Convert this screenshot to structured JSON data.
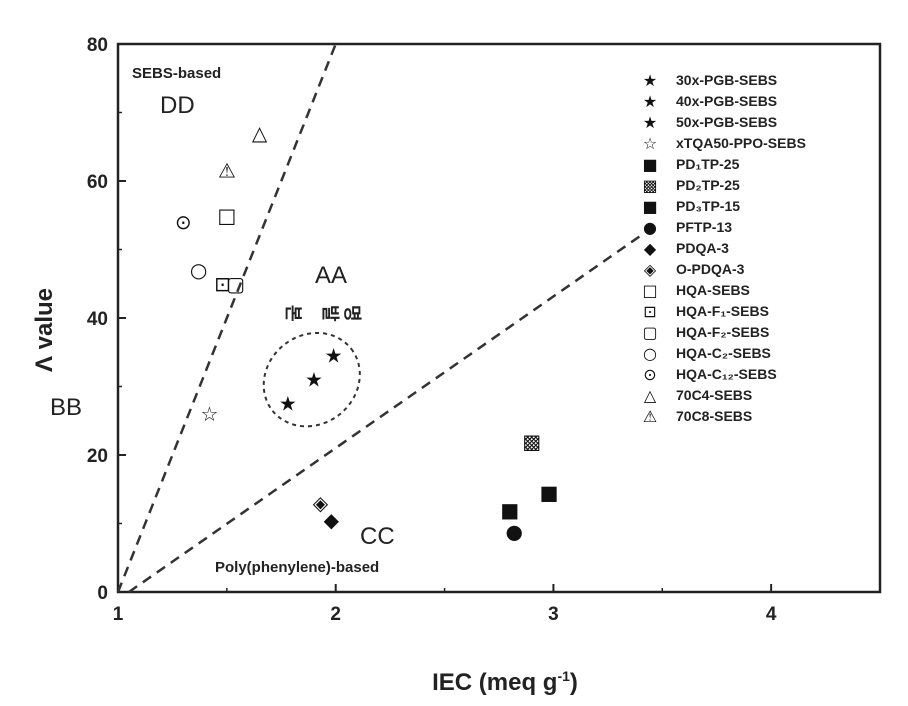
{
  "chart_data": {
    "type": "scatter",
    "title": "",
    "xlabel": "IEC (meq g⁻¹)",
    "ylabel": "Λ value",
    "xlim": [
      1,
      4.5
    ],
    "ylim": [
      0,
      80
    ],
    "xticks": [
      "1",
      "2",
      "3",
      "4"
    ],
    "yticks": [
      "0",
      "20",
      "40",
      "60",
      "80"
    ],
    "grid": false,
    "legend_position": "right",
    "labels": {
      "AA": "AA",
      "BB": "BB",
      "CC": "CC",
      "DD": "DD",
      "region_top": "SEBS-based",
      "region_bottom": "Poly(phenylene)-based",
      "vertical_text": [
        "본",
        "발",
        "명"
      ]
    },
    "series": [
      {
        "name": "30x-PGB-SEBS",
        "symbol": "★",
        "points": [
          [
            1.9,
            31
          ]
        ]
      },
      {
        "name": "40x-PGB-SEBS",
        "symbol": "★",
        "points": [
          [
            1.99,
            34.5
          ]
        ]
      },
      {
        "name": "50x-PGB-SEBS",
        "symbol": "★",
        "points": [
          [
            1.78,
            27.5
          ]
        ]
      },
      {
        "name": "xTQA50-PPO-SEBS",
        "symbol": "☆",
        "points": [
          [
            1.42,
            26
          ]
        ]
      },
      {
        "name": "PD₁TP-25",
        "symbol": "■",
        "points": [
          [
            2.8,
            12
          ]
        ]
      },
      {
        "name": "PD₂TP-25",
        "symbol": "▩",
        "points": [
          [
            2.9,
            22
          ]
        ]
      },
      {
        "name": "PD₃TP-15",
        "symbol": "■",
        "points": [
          [
            2.98,
            14.5
          ]
        ]
      },
      {
        "name": "PFTP-13",
        "symbol": "●",
        "points": [
          [
            2.82,
            8.8
          ]
        ]
      },
      {
        "name": "PDQA-3",
        "symbol": "◆",
        "points": [
          [
            1.98,
            10.5
          ]
        ]
      },
      {
        "name": "O-PDQA-3",
        "symbol": "◈",
        "points": [
          [
            1.93,
            13
          ]
        ]
      },
      {
        "name": "HQA-SEBS",
        "symbol": "□",
        "points": [
          [
            1.5,
            55
          ]
        ]
      },
      {
        "name": "HQA-F₁-SEBS",
        "symbol": "⊡",
        "points": [
          [
            1.48,
            45
          ]
        ]
      },
      {
        "name": "HQA-F₂-SEBS",
        "symbol": "▢",
        "points": [
          [
            1.54,
            45
          ]
        ]
      },
      {
        "name": "HQA-C₂-SEBS",
        "symbol": "○",
        "points": [
          [
            1.37,
            47
          ]
        ]
      },
      {
        "name": "HQA-C₁₂-SEBS",
        "symbol": "⊙",
        "points": [
          [
            1.3,
            54
          ]
        ]
      },
      {
        "name": "70C4-SEBS",
        "symbol": "△",
        "points": [
          [
            1.65,
            67
          ]
        ]
      },
      {
        "name": "70C8-SEBS",
        "symbol": "⚠",
        "points": [
          [
            1.5,
            61.5
          ]
        ]
      }
    ],
    "lines": [
      {
        "style": "dashed",
        "from": [
          1.0,
          0
        ],
        "to": [
          2.0,
          80
        ]
      },
      {
        "style": "dashed",
        "from": [
          1.05,
          0
        ],
        "to": [
          3.4,
          52
        ]
      }
    ],
    "ellipse": {
      "center": [
        1.89,
        31
      ],
      "rx": 0.23,
      "ry": 6.5,
      "style": "dashed"
    }
  }
}
